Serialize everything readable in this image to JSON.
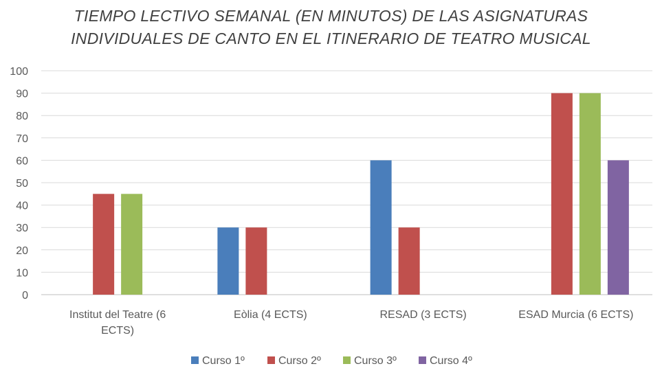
{
  "chart_data": {
    "type": "bar",
    "title_lines": [
      "TIEMPO LECTIVO SEMANAL (EN MINUTOS) DE LAS ASIGNATURAS",
      "INDIVIDUALES DE CANTO EN EL ITINERARIO DE TEATRO MUSICAL"
    ],
    "categories": [
      [
        "Institut del Teatre (6",
        "ECTS)"
      ],
      [
        "Eòlia (4 ECTS)"
      ],
      [
        "RESAD (3 ECTS)"
      ],
      [
        "ESAD Murcia (6 ECTS)"
      ]
    ],
    "series": [
      {
        "name": "Curso 1º",
        "color": "#4a7ebb",
        "values": [
          null,
          30,
          60,
          null
        ]
      },
      {
        "name": "Curso 2º",
        "color": "#c0504d",
        "values": [
          45,
          30,
          30,
          90
        ]
      },
      {
        "name": "Curso 3º",
        "color": "#9bbb59",
        "values": [
          45,
          null,
          null,
          90
        ]
      },
      {
        "name": "Curso 4º",
        "color": "#8064a2",
        "values": [
          null,
          null,
          null,
          60
        ]
      }
    ],
    "ylim": [
      0,
      100
    ],
    "yticks": [
      0,
      10,
      20,
      30,
      40,
      50,
      60,
      70,
      80,
      90,
      100
    ],
    "grid": true,
    "legend_position": "bottom"
  }
}
